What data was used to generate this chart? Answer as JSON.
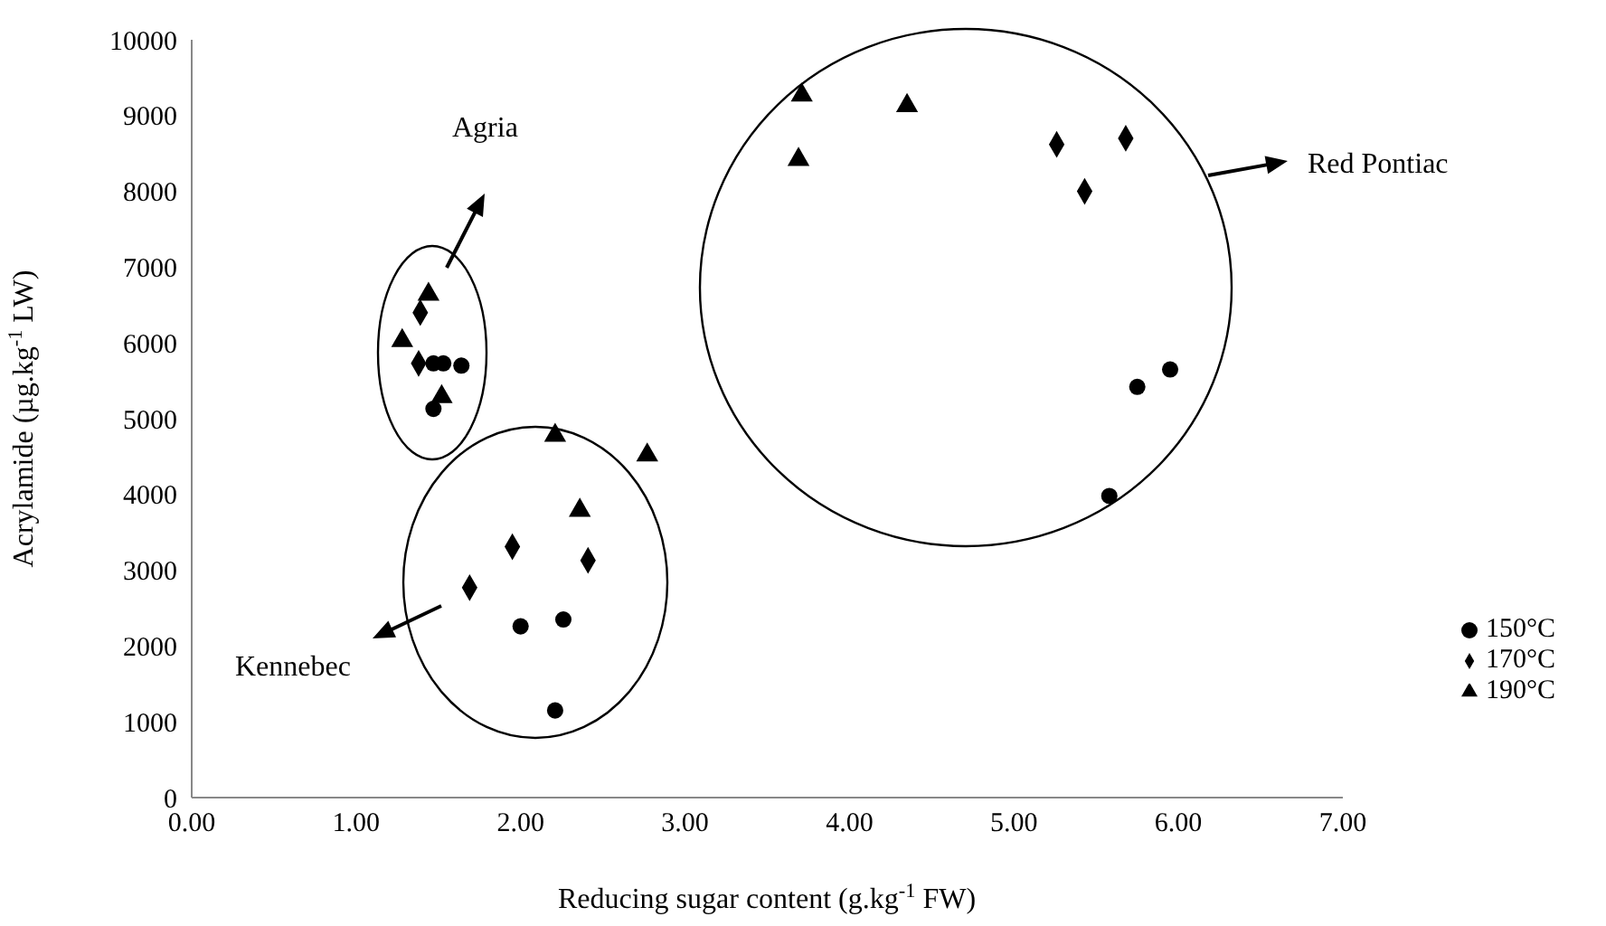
{
  "chart_data": {
    "type": "scatter",
    "xlabel": "Reducing sugar content (g.kg$^{-1}$ FW)",
    "ylabel": "Acrylamide (µg.kg$^{-1}$ LW)",
    "xlim": [
      0,
      7
    ],
    "xticks": [
      {
        "value": 0,
        "label": "0.00"
      },
      {
        "value": 1,
        "label": "1.00"
      },
      {
        "value": 2,
        "label": "2.00"
      },
      {
        "value": 3,
        "label": "3.00"
      },
      {
        "value": 4,
        "label": "4.00"
      },
      {
        "value": 5,
        "label": "5.00"
      },
      {
        "value": 6,
        "label": "6.00"
      },
      {
        "value": 7,
        "label": "7.00"
      }
    ],
    "ylim": [
      0,
      10000
    ],
    "yticks": [
      0,
      1000,
      2000,
      3000,
      4000,
      5000,
      6000,
      7000,
      8000,
      9000,
      10000
    ],
    "legend": "right",
    "series": [
      {
        "name": "150°C",
        "color": "#000000",
        "marker": "circle",
        "x": [
          1.47,
          1.53,
          1.64,
          1.47,
          2.26,
          2.0,
          2.21,
          5.95,
          5.75,
          5.58
        ],
        "values": [
          5730,
          5730,
          5700,
          5130,
          2350,
          2260,
          1150,
          5650,
          5420,
          3980
        ]
      },
      {
        "name": "170°C",
        "color": "#000000",
        "marker": "diamond",
        "x": [
          1.39,
          1.38,
          1.95,
          2.41,
          1.69,
          5.68,
          5.26,
          5.43
        ],
        "values": [
          6400,
          5730,
          3310,
          3130,
          2770,
          8700,
          8620,
          8000
        ]
      },
      {
        "name": "190°C",
        "color": "#000000",
        "marker": "triangle",
        "x": [
          1.44,
          1.28,
          1.52,
          2.21,
          2.77,
          2.36,
          3.71,
          4.35,
          3.69
        ],
        "values": [
          6640,
          6030,
          5290,
          4780,
          4520,
          3790,
          9270,
          9130,
          8420
        ]
      }
    ],
    "annotations": [
      "Agria",
      "Kennebec",
      "Red Pontiac"
    ]
  }
}
